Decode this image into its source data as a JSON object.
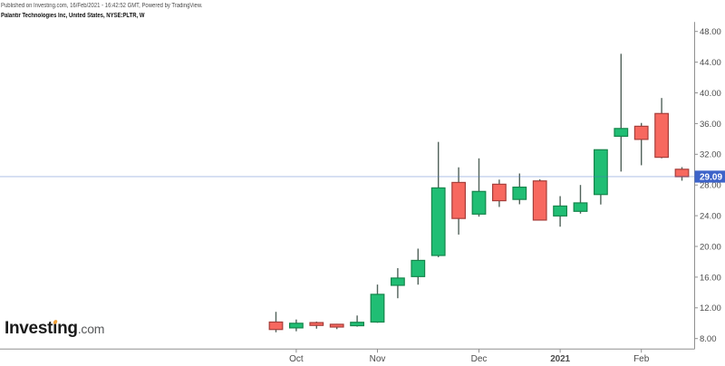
{
  "header": {
    "published": "Published on Investing.com, 16/Feb/2021 - 16:42:52 GMT, Powered by TradingView.",
    "instrument": "Palantir Technologies Inc, United States, NYSE:PLTR, W"
  },
  "logo": {
    "brand_prefix": "Invest",
    "brand_dotless_i": "ı",
    "brand_suffix": "ng",
    "tld": ".com",
    "tittle_color": "#F2A33C"
  },
  "chart_data": {
    "type": "candlestick",
    "title": "Palantir Technologies Inc, United States, NYSE:PLTR, W",
    "symbol": "NYSE:PLTR",
    "interval": "W",
    "grid": "off",
    "price_axis": {
      "side": "right",
      "tick_values": [
        48,
        44,
        40,
        36,
        32,
        28,
        24,
        20,
        16,
        12,
        8
      ],
      "tick_labels": [
        "48.00",
        "44.00",
        "40.00",
        "36.00",
        "32.00",
        "28.00",
        "24.00",
        "20.00",
        "16.00",
        "12.00",
        "8.00"
      ],
      "visible_range": [
        6.6,
        49.2
      ]
    },
    "time_axis": {
      "labels": [
        {
          "bar": 1,
          "label": "Oct",
          "bold": false
        },
        {
          "bar": 5,
          "label": "Nov",
          "bold": false
        },
        {
          "bar": 10,
          "label": "Dec",
          "bold": false
        },
        {
          "bar": 14,
          "label": "2021",
          "bold": true
        },
        {
          "bar": 18,
          "label": "Feb",
          "bold": false
        }
      ]
    },
    "last_price": {
      "value": 29.09,
      "label": "29.09"
    },
    "candles": [
      {
        "o": 10.15,
        "h": 11.48,
        "l": 8.82,
        "c": 9.18
      },
      {
        "o": 9.39,
        "h": 10.48,
        "l": 8.95,
        "c": 9.99
      },
      {
        "o": 10.08,
        "h": 10.21,
        "l": 9.29,
        "c": 9.71
      },
      {
        "o": 9.86,
        "h": 9.92,
        "l": 9.23,
        "c": 9.5
      },
      {
        "o": 9.67,
        "h": 11.0,
        "l": 9.55,
        "c": 10.12
      },
      {
        "o": 10.15,
        "h": 15.03,
        "l": 10.05,
        "c": 13.76
      },
      {
        "o": 14.93,
        "h": 17.17,
        "l": 13.25,
        "c": 15.88
      },
      {
        "o": 16.07,
        "h": 19.71,
        "l": 15.02,
        "c": 18.18
      },
      {
        "o": 18.82,
        "h": 33.61,
        "l": 18.6,
        "c": 27.62
      },
      {
        "o": 28.33,
        "h": 30.3,
        "l": 21.54,
        "c": 23.64
      },
      {
        "o": 24.21,
        "h": 31.47,
        "l": 23.88,
        "c": 27.16
      },
      {
        "o": 28.1,
        "h": 28.7,
        "l": 25.14,
        "c": 25.95
      },
      {
        "o": 26.12,
        "h": 29.5,
        "l": 25.49,
        "c": 27.72
      },
      {
        "o": 28.53,
        "h": 28.74,
        "l": 23.4,
        "c": 23.43
      },
      {
        "o": 23.97,
        "h": 26.55,
        "l": 22.57,
        "c": 25.26
      },
      {
        "o": 24.57,
        "h": 28.0,
        "l": 24.27,
        "c": 25.67
      },
      {
        "o": 26.76,
        "h": 32.59,
        "l": 25.46,
        "c": 32.59
      },
      {
        "o": 34.35,
        "h": 45.09,
        "l": 29.75,
        "c": 35.36
      },
      {
        "o": 35.65,
        "h": 36.08,
        "l": 30.57,
        "c": 33.94
      },
      {
        "o": 37.31,
        "h": 39.33,
        "l": 31.48,
        "c": 31.61
      },
      {
        "o": 30.05,
        "h": 30.33,
        "l": 28.56,
        "c": 29.09
      }
    ],
    "colors": {
      "up_fill": "#20BE74",
      "up_border": "#15854B",
      "down_fill": "#F7685F",
      "down_border": "#A63E3A",
      "wick": "#51625A",
      "axis_line": "#909090",
      "axis_text": "#4B4B4B",
      "price_line": "#4A72C8",
      "badge_bg": "#3D63C9",
      "badge_text": "#FFFFFF"
    }
  }
}
